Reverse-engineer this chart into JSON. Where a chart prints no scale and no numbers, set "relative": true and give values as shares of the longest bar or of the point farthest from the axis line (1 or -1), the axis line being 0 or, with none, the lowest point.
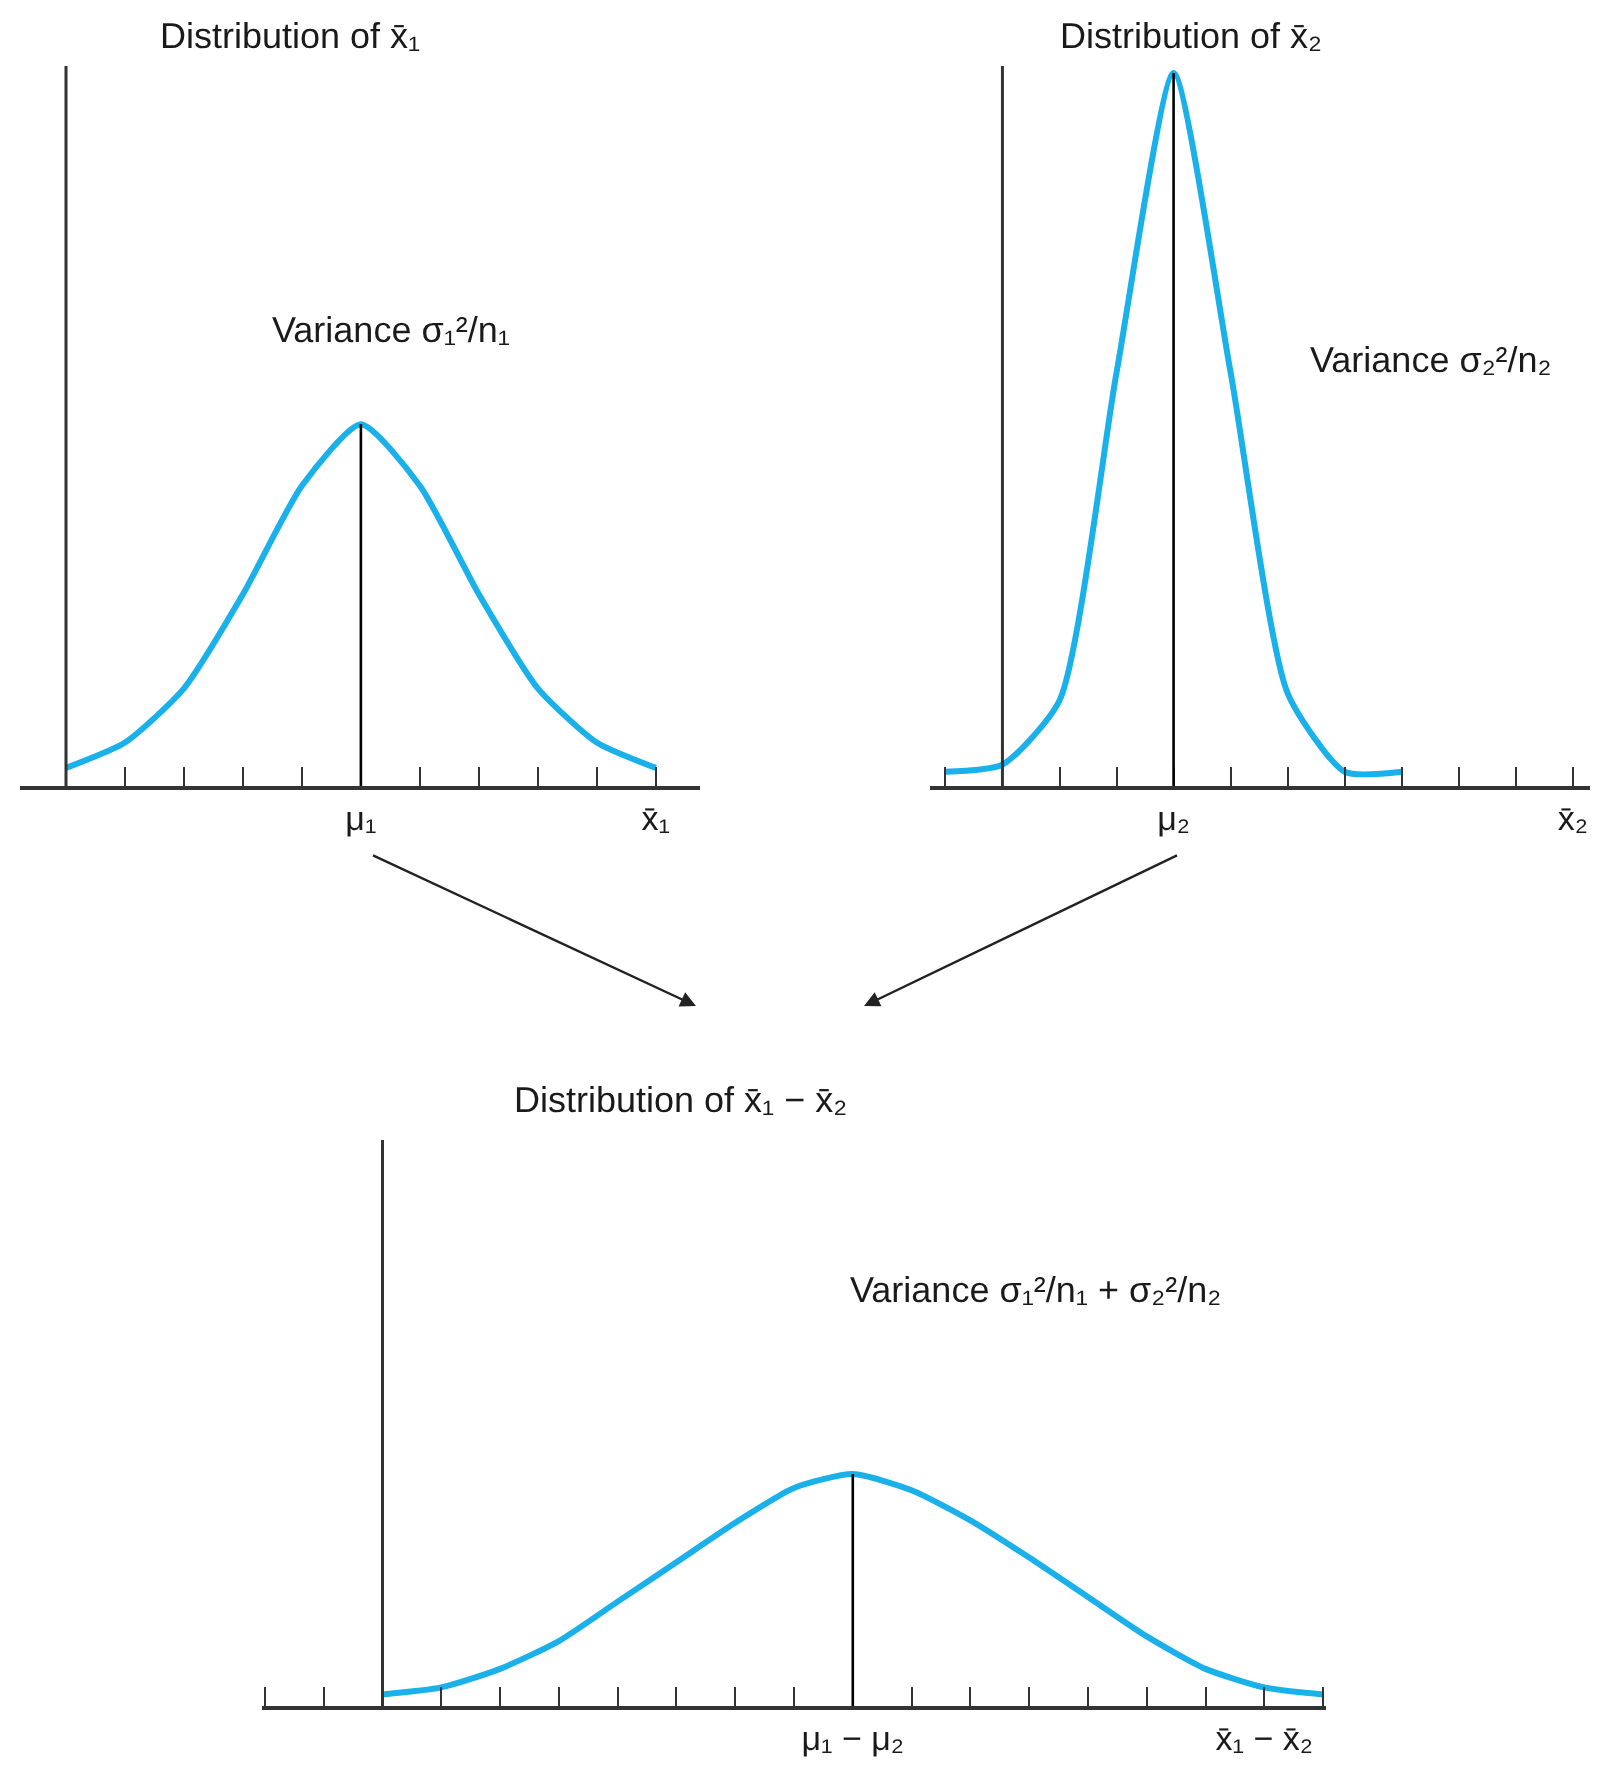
{
  "chart_data": [
    {
      "type": "line",
      "title": "Distribution of x̄₁",
      "relative": true,
      "annotations": [
        "Variance σ₁²/n₁"
      ],
      "categories": [
        null,
        null,
        null,
        null,
        null,
        "μ₁",
        null,
        null,
        null,
        null,
        "x̄₁"
      ],
      "series": [
        {
          "color": "#1ab0ea",
          "values": [
            0.05,
            0.12,
            0.27,
            0.53,
            0.83,
            1.0,
            0.83,
            0.53,
            0.27,
            0.12,
            0.05
          ]
        }
      ],
      "ref_lines": [
        {
          "axis": "x",
          "value": "μ₁",
          "color": "#000000"
        }
      ],
      "marker": "none",
      "line_style": "solid"
    },
    {
      "type": "line",
      "title": "Distribution of x̄₂",
      "relative": true,
      "annotations": [
        "Variance σ₂²/n₂"
      ],
      "categories": [
        null,
        null,
        null,
        null,
        "μ₂",
        null,
        null,
        null,
        null,
        null,
        null,
        "x̄₂"
      ],
      "series": [
        {
          "color": "#1ab0ea",
          "values": [
            0.02,
            0.03,
            0.12,
            0.58,
            1.0,
            0.58,
            0.13,
            0.02,
            0.02,
            null,
            null,
            null
          ]
        }
      ],
      "ref_lines": [
        {
          "axis": "x",
          "value": "μ₂",
          "color": "#000000"
        }
      ],
      "marker": "none",
      "line_style": "solid"
    },
    {
      "type": "line",
      "title": "Distribution of x̄₁ − x̄₂",
      "relative": true,
      "annotations": [
        "Variance σ₁²/n₁ + σ₂²/n₂"
      ],
      "categories": [
        null,
        null,
        null,
        null,
        null,
        null,
        null,
        null,
        null,
        null,
        "μ₁ − μ₂",
        null,
        null,
        null,
        null,
        null,
        null,
        "x̄₁ − x̄₂",
        null
      ],
      "series": [
        {
          "color": "#1ab0ea",
          "values": [
            null,
            null,
            0.05,
            0.08,
            0.16,
            0.28,
            0.45,
            0.62,
            0.79,
            0.94,
            1.0,
            0.93,
            0.8,
            0.64,
            0.47,
            0.3,
            0.16,
            0.08,
            0.05
          ]
        }
      ],
      "ref_lines": [
        {
          "axis": "x",
          "value": "μ₁ − μ₂",
          "color": "#000000"
        }
      ],
      "marker": "none",
      "line_style": "solid"
    }
  ]
}
